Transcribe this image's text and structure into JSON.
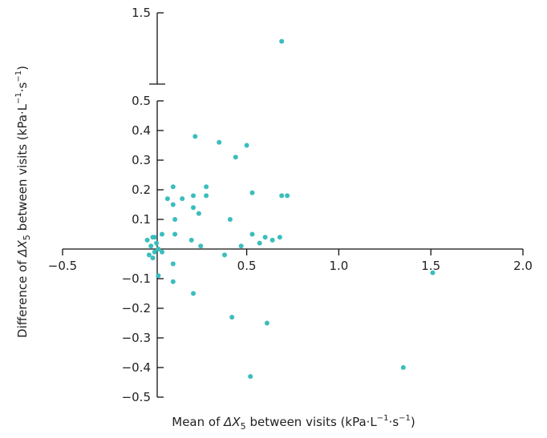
{
  "chart_data": {
    "type": "scatter",
    "xlabel": "Mean of ΔX₅ between visits (kPa·L⁻¹·s⁻¹)",
    "ylabel": "Difference of ΔX₅ between visits (kPa·L⁻¹·s⁻¹)",
    "xlabel_parts": {
      "before": "Mean of ",
      "delta": "Δ",
      "var": "X",
      "sub": "5",
      "after": " between visits (kPa·L",
      "u1": "−1",
      "mid": "·s",
      "u2": "−1",
      "close": ")"
    },
    "ylabel_parts": {
      "before": "Difference of ",
      "delta": "Δ",
      "var": "X",
      "sub": "5",
      "after": " between visits (kPa·L",
      "u1": "−1",
      "mid": "·s",
      "u2": "−1",
      "close": ")"
    },
    "xlim": [
      -0.5,
      2.0
    ],
    "ylim": [
      -0.5,
      0.5
    ],
    "y_break": {
      "upper_tick": 1.5
    },
    "x_ticks": [
      {
        "value": -0.5,
        "label": "−0.5"
      },
      {
        "value": 0.5,
        "label": "0.5"
      },
      {
        "value": 1.0,
        "label": "1.0"
      },
      {
        "value": 1.5,
        "label": "1.5"
      },
      {
        "value": 2.0,
        "label": "2.0"
      }
    ],
    "y_ticks": [
      {
        "value": -0.5,
        "label": "−0.5"
      },
      {
        "value": -0.4,
        "label": "−0.4"
      },
      {
        "value": -0.3,
        "label": "−0.3"
      },
      {
        "value": -0.2,
        "label": "−0.2"
      },
      {
        "value": -0.1,
        "label": "−0.1"
      },
      {
        "value": 0.1,
        "label": "0.1"
      },
      {
        "value": 0.2,
        "label": "0.2"
      },
      {
        "value": 0.3,
        "label": "0.3"
      },
      {
        "value": 0.4,
        "label": "0.4"
      },
      {
        "value": 0.5,
        "label": "0.5"
      }
    ],
    "y_ticks_upper": [
      {
        "value": 1.5,
        "label": "1.5"
      }
    ],
    "grid": false,
    "point_color": "#3bbdbd",
    "points": [
      [
        -0.04,
        0.03
      ],
      [
        -0.03,
        -0.02
      ],
      [
        -0.02,
        0.01
      ],
      [
        -0.01,
        0.04
      ],
      [
        0.0,
        -0.01
      ],
      [
        0.01,
        0.02
      ],
      [
        -0.01,
        -0.03
      ],
      [
        0.0,
        0.04
      ],
      [
        0.02,
        0.0
      ],
      [
        0.04,
        -0.01
      ],
      [
        0.04,
        0.05
      ],
      [
        0.02,
        -0.09
      ],
      [
        0.07,
        0.17
      ],
      [
        0.1,
        0.15
      ],
      [
        0.1,
        0.21
      ],
      [
        0.11,
        0.1
      ],
      [
        0.11,
        0.05
      ],
      [
        0.1,
        -0.05
      ],
      [
        0.1,
        -0.11
      ],
      [
        0.15,
        0.17
      ],
      [
        0.2,
        0.03
      ],
      [
        0.21,
        0.18
      ],
      [
        0.21,
        0.14
      ],
      [
        0.22,
        0.38
      ],
      [
        0.24,
        0.12
      ],
      [
        0.25,
        0.01
      ],
      [
        0.28,
        0.21
      ],
      [
        0.28,
        0.18
      ],
      [
        0.21,
        -0.15
      ],
      [
        0.35,
        0.36
      ],
      [
        0.38,
        -0.02
      ],
      [
        0.41,
        0.1
      ],
      [
        0.42,
        -0.23
      ],
      [
        0.44,
        0.31
      ],
      [
        0.47,
        0.01
      ],
      [
        0.5,
        0.35
      ],
      [
        0.52,
        -0.43
      ],
      [
        0.53,
        0.19
      ],
      [
        0.53,
        0.05
      ],
      [
        0.57,
        0.02
      ],
      [
        0.6,
        0.04
      ],
      [
        0.61,
        -0.25
      ],
      [
        0.64,
        0.03
      ],
      [
        0.68,
        0.04
      ],
      [
        0.69,
        0.18
      ],
      [
        0.72,
        0.18
      ],
      [
        1.35,
        -0.4
      ],
      [
        1.51,
        -0.08
      ]
    ],
    "points_upper": [
      [
        0.69,
        1.3
      ]
    ]
  }
}
